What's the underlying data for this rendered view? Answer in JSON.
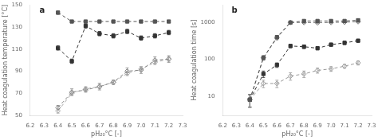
{
  "chart_data": [
    {
      "type": "line",
      "title": "a",
      "x_label": "pH₂₀°C [-]",
      "y_label": "Heat coagulation temperature [°C]",
      "xlim": [
        6.2,
        7.3
      ],
      "xticks": [
        6.2,
        6.3,
        6.4,
        6.5,
        6.6,
        6.7,
        6.8,
        6.9,
        {
          "value": 7.0,
          "label": "7.0"
        },
        7.1,
        7.2,
        7.3
      ],
      "ylim": [
        50,
        150
      ],
      "yticks": [
        50,
        70,
        90,
        110,
        130,
        150
      ],
      "grid": false,
      "x": [
        6.4,
        6.5,
        6.6,
        6.7,
        6.8,
        6.9,
        7.0,
        7.1,
        7.2
      ],
      "series": [
        {
          "color": "#555555",
          "marker": "square",
          "line_style": "dashed",
          "values": [
            143,
            135,
            135,
            135,
            135,
            135,
            135,
            135,
            135
          ],
          "yerr": [
            1.5,
            1,
            1,
            1,
            1,
            1,
            1,
            1,
            1
          ]
        },
        {
          "color": "#333333",
          "marker": "square",
          "line_style": "dashed",
          "values": [
            111,
            99,
            131,
            124,
            122,
            126,
            120,
            122,
            125
          ],
          "yerr": [
            2,
            2,
            2,
            2,
            2,
            2,
            2,
            2,
            2
          ]
        },
        {
          "color": "#888888",
          "marker": "diamond_open",
          "line_style": "dashed",
          "values": [
            57,
            71,
            73,
            76,
            80,
            90,
            91,
            100,
            101
          ],
          "yerr": [
            2,
            3,
            2,
            3,
            2,
            3,
            3,
            3,
            3
          ]
        },
        {
          "color": "#aaaaaa",
          "marker": "diamond_open",
          "line_style": "dashed",
          "values": [
            54,
            70,
            74,
            76,
            80,
            88,
            92,
            98,
            101
          ],
          "yerr": [
            2,
            2,
            2,
            2,
            2,
            2,
            2,
            2,
            2
          ]
        }
      ]
    },
    {
      "type": "line",
      "title": "b",
      "x_label": "pH₂₀°C [-]",
      "y_label": "Heat coagulation time [s]",
      "log": "y",
      "xlim": [
        6.2,
        7.3
      ],
      "xticks": [
        6.2,
        6.3,
        6.4,
        6.5,
        6.6,
        6.7,
        6.8,
        6.9,
        {
          "value": 7.0,
          "label": "7.0"
        },
        7.1,
        7.2,
        7.3
      ],
      "ylim": [
        3,
        3000
      ],
      "yticks": [
        10,
        100,
        1000
      ],
      "grid": false,
      "x": [
        6.4,
        6.5,
        6.6,
        6.7,
        6.8,
        6.9,
        7.0,
        7.1,
        7.2
      ],
      "series": [
        {
          "color": "#555555",
          "marker": "square",
          "line_style": "dashed",
          "values": [
            8,
            110,
            400,
            1000,
            1100,
            1100,
            1100,
            1100,
            1150
          ],
          "yerr": [
            3,
            15,
            40,
            80,
            50,
            50,
            50,
            50,
            50
          ]
        },
        {
          "color": "#777777",
          "marker": "diamond_open",
          "line_style": "dashed",
          "values": [
            8,
            110,
            380,
            1000,
            1000,
            980,
            1000,
            1020,
            1050
          ],
          "yerr": [
            3,
            15,
            40,
            80,
            50,
            50,
            50,
            50,
            50
          ]
        },
        {
          "color": "#333333",
          "marker": "square",
          "line_style": "dashed",
          "values": [
            8,
            40,
            70,
            230,
            220,
            200,
            250,
            280,
            320
          ],
          "yerr": [
            3,
            8,
            10,
            25,
            25,
            20,
            25,
            30,
            30
          ]
        },
        {
          "color": "#999999",
          "marker": "diamond_open",
          "line_style": "dashed",
          "values": [
            8,
            22,
            22,
            35,
            40,
            50,
            55,
            65,
            80
          ],
          "yerr": [
            3,
            5,
            5,
            8,
            8,
            8,
            8,
            8,
            10
          ]
        }
      ]
    }
  ]
}
